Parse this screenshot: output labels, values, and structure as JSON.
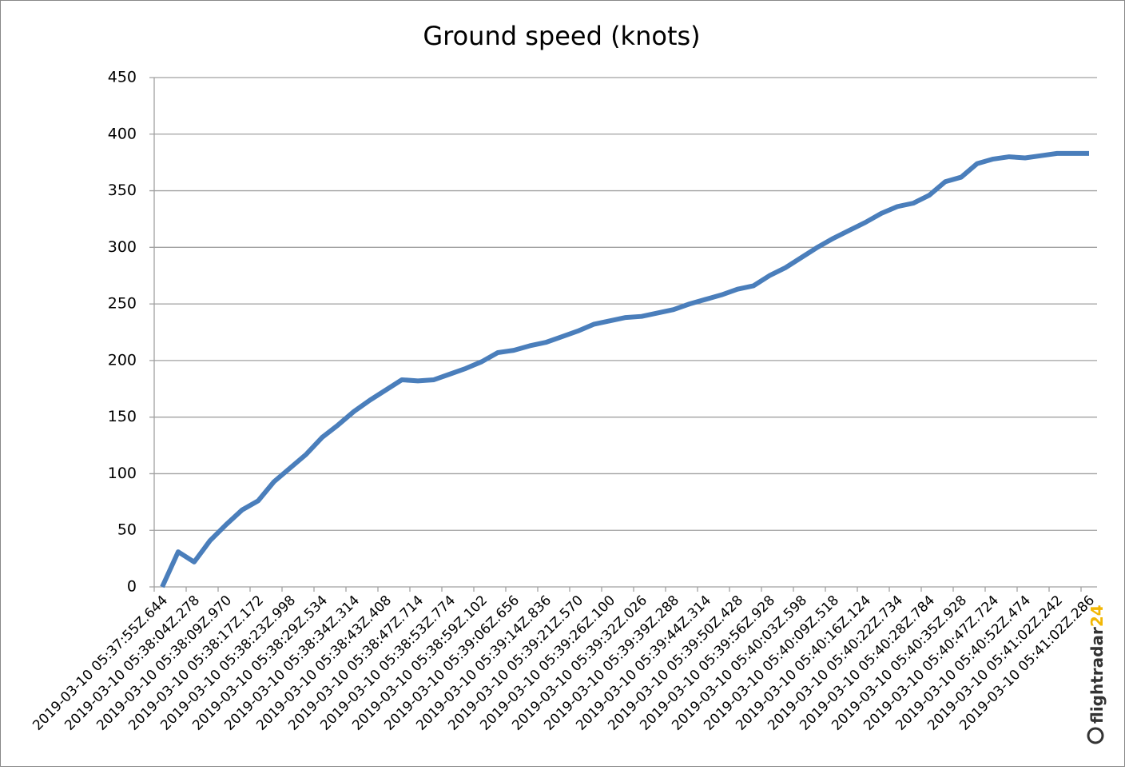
{
  "chart_data": {
    "type": "line",
    "title": "Ground speed (knots)",
    "categories": [
      "2019-03-10 05:37:55Z.644",
      null,
      "2019-03-10 05:38:04Z.278",
      null,
      "2019-03-10 05:38:09Z.970",
      null,
      "2019-03-10 05:38:17Z.172",
      null,
      "2019-03-10 05:38:23Z.998",
      null,
      "2019-03-10 05:38:29Z.534",
      null,
      "2019-03-10 05:38:34Z.314",
      null,
      "2019-03-10 05:38:43Z.408",
      null,
      "2019-03-10 05:38:47Z.714",
      null,
      "2019-03-10 05:38:53Z.774",
      null,
      "2019-03-10 05:38:59Z.102",
      null,
      "2019-03-10 05:39:06Z.656",
      null,
      "2019-03-10 05:39:14Z.836",
      null,
      "2019-03-10 05:39:21Z.570",
      null,
      "2019-03-10 05:39:26Z.100",
      null,
      "2019-03-10 05:39:32Z.026",
      null,
      "2019-03-10 05:39:39Z.288",
      null,
      "2019-03-10 05:39:44Z.314",
      null,
      "2019-03-10 05:39:50Z.428",
      null,
      "2019-03-10 05:39:56Z.928",
      null,
      "2019-03-10 05:40:03Z.598",
      null,
      "2019-03-10 05:40:09Z.518",
      null,
      "2019-03-10 05:40:16Z.124",
      null,
      "2019-03-10 05:40:22Z.734",
      null,
      "2019-03-10 05:40:28Z.784",
      null,
      "2019-03-10 05:40:35Z.928",
      null,
      "2019-03-10 05:40:47Z.724",
      null,
      "2019-03-10 05:40:52Z.474",
      null,
      "2019-03-10 05:41:02Z.242",
      null,
      "2019-03-10 05:41:02Z.286"
    ],
    "series": [
      {
        "name": "Ground speed",
        "color": "#4a7ebb",
        "values": [
          0,
          31,
          22,
          41,
          55,
          68,
          76,
          93,
          105,
          117,
          132,
          143,
          155,
          165,
          174,
          183,
          182,
          183,
          188,
          193,
          199,
          207,
          209,
          213,
          216,
          221,
          226,
          232,
          235,
          238,
          239,
          242,
          245,
          250,
          254,
          258,
          263,
          266,
          275,
          282,
          291,
          300,
          308,
          315,
          322,
          330,
          336,
          339,
          346,
          358,
          362,
          374,
          378,
          380,
          379,
          381,
          383,
          383,
          383
        ]
      }
    ],
    "ylim": [
      0,
      450
    ],
    "yticks": [
      0,
      50,
      100,
      150,
      200,
      250,
      300,
      350,
      400,
      450
    ],
    "grid": true,
    "watermark": [
      "flightradar",
      "24"
    ]
  }
}
